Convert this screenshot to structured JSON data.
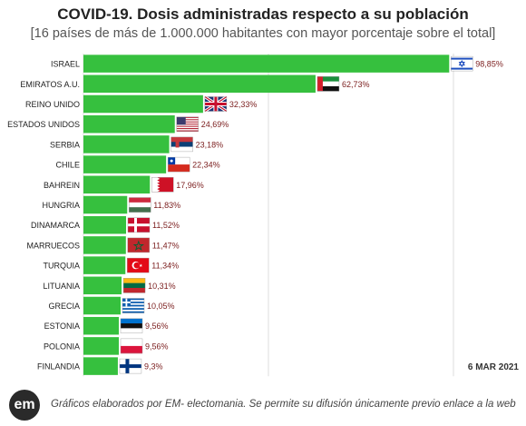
{
  "title": "COVID-19. Dosis administradas respecto a su población",
  "subtitle": "[16 países de más de 1.000.000 habitantes con mayor porcentaje sobre el total]",
  "date_label": "6 MAR 2021",
  "footer": {
    "logo": "em",
    "text": "Gráficos elaborados por EM- electomania. Se permite su difusión únicamente previo enlace a la web"
  },
  "colors": {
    "bar": "#36c03e",
    "grid": "#dddddd",
    "label": "#7a1c1c"
  },
  "chart_data": {
    "type": "bar",
    "orientation": "horizontal",
    "grid": true,
    "xlim": [
      0,
      100
    ],
    "categories": [
      "ISRAEL",
      "EMIRATOS A.U.",
      "REINO UNIDO",
      "ESTADOS UNIDOS",
      "SERBIA",
      "CHILE",
      "BAHREIN",
      "HUNGRIA",
      "DINAMARCA",
      "MARRUECOS",
      "TURQUIA",
      "LITUANIA",
      "GRECIA",
      "ESTONIA",
      "POLONIA",
      "FINLANDIA"
    ],
    "values": [
      98.85,
      62.73,
      32.33,
      24.69,
      23.18,
      22.34,
      17.96,
      11.83,
      11.52,
      11.47,
      11.34,
      10.31,
      10.05,
      9.56,
      9.56,
      9.3
    ],
    "value_labels": [
      "98,85%",
      "62,73%",
      "32,33%",
      "24,69%",
      "23,18%",
      "22,34%",
      "17,96%",
      "11,83%",
      "11,52%",
      "11,47%",
      "11,34%",
      "10,31%",
      "10,05%",
      "9,56%",
      "9,56%",
      "9,3%"
    ],
    "flags": [
      "israel-flag",
      "uae-flag",
      "uk-flag",
      "usa-flag",
      "serbia-flag",
      "chile-flag",
      "bahrain-flag",
      "hungary-flag",
      "denmark-flag",
      "morocco-flag",
      "turkey-flag",
      "lithuania-flag",
      "greece-flag",
      "estonia-flag",
      "poland-flag",
      "finland-flag"
    ]
  }
}
